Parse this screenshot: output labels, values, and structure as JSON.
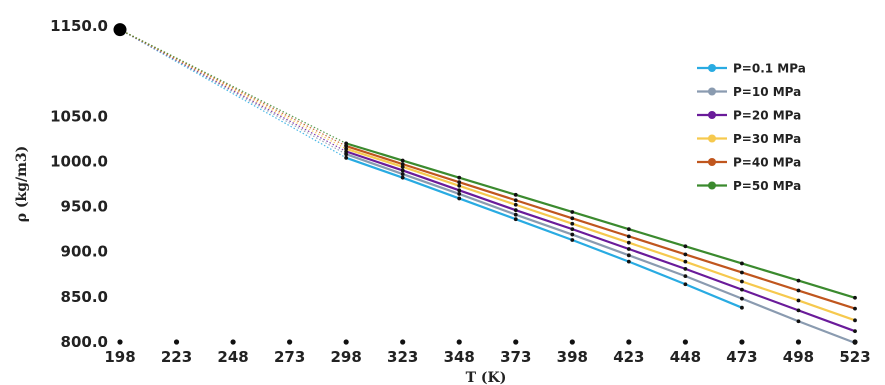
{
  "chart_data": {
    "type": "line",
    "title": "",
    "xlabel": "T (K)",
    "ylabel": "ρ (kg/m3)",
    "xlim": [
      198,
      523
    ],
    "ylim": [
      800,
      1150
    ],
    "x_ticks": [
      "198",
      "223",
      "248",
      "273",
      "298",
      "323",
      "348",
      "373",
      "398",
      "423",
      "448",
      "473",
      "498",
      "523"
    ],
    "y_ticks": [
      "800.0",
      "850.0",
      "900.0",
      "950.0",
      "1000.0",
      "1050.0",
      "1150.0"
    ],
    "legend_position": "right",
    "reference_point": {
      "x": 198,
      "y": 1146
    },
    "series": [
      {
        "name": "P=0.1 MPa",
        "color": "#29abe2",
        "x": [
          298,
          323,
          348,
          373,
          398,
          423,
          448,
          473
        ],
        "y": [
          1004,
          982,
          959,
          936,
          913,
          889,
          864,
          838
        ]
      },
      {
        "name": "P=10 MPa",
        "color": "#8a9bb0",
        "x": [
          298,
          323,
          348,
          373,
          398,
          423,
          448,
          473,
          498,
          523
        ],
        "y": [
          1008,
          986,
          964,
          941,
          919,
          896,
          873,
          848,
          823,
          799
        ]
      },
      {
        "name": "P=20 MPa",
        "color": "#6a1b9a",
        "x": [
          298,
          323,
          348,
          373,
          398,
          423,
          448,
          473,
          498,
          523
        ],
        "y": [
          1011,
          990,
          968,
          946,
          925,
          903,
          881,
          858,
          835,
          812
        ]
      },
      {
        "name": "P=30 MPa",
        "color": "#f6c94e",
        "x": [
          298,
          323,
          348,
          373,
          398,
          423,
          448,
          473,
          498,
          523
        ],
        "y": [
          1014,
          994,
          973,
          952,
          931,
          910,
          889,
          867,
          846,
          824
        ]
      },
      {
        "name": "P=40 MPa",
        "color": "#c0561e",
        "x": [
          298,
          323,
          348,
          373,
          398,
          423,
          448,
          473,
          498,
          523
        ],
        "y": [
          1017,
          997,
          977,
          957,
          937,
          917,
          897,
          877,
          857,
          837
        ]
      },
      {
        "name": "P=50 MPa",
        "color": "#3b8a2e",
        "x": [
          298,
          323,
          348,
          373,
          398,
          423,
          448,
          473,
          498,
          523
        ],
        "y": [
          1020,
          1001,
          982,
          963,
          944,
          925,
          906,
          887,
          868,
          849
        ]
      }
    ]
  }
}
